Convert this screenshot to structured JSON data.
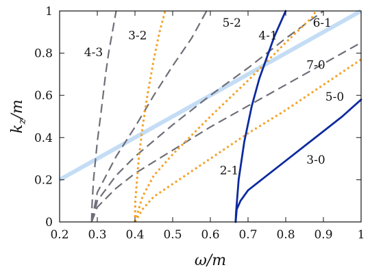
{
  "chart_data": {
    "type": "line",
    "xlabel": "ω/m",
    "ylabel": "k_z/m",
    "xlim": [
      0.2,
      1.0
    ],
    "ylim": [
      0,
      1
    ],
    "xticks": [
      "0.2",
      "0.3",
      "0.4",
      "0.5",
      "0.6",
      "0.7",
      "0.8",
      "0.9",
      "1"
    ],
    "yticks": [
      "0",
      "0.2",
      "0.4",
      "0.6",
      "0.8",
      "1"
    ],
    "grid": false,
    "colors": {
      "gray": "#6e6e78",
      "orange": "#f2a22a",
      "blue": "#0d2a9e",
      "lightblue": "#c4ddf5"
    },
    "series": [
      {
        "label": "4-3",
        "style": "gray-longdash",
        "points": [
          [
            0.285,
            0
          ],
          [
            0.286,
            0.08
          ],
          [
            0.29,
            0.2
          ],
          [
            0.3,
            0.38
          ],
          [
            0.31,
            0.52
          ],
          [
            0.322,
            0.7
          ],
          [
            0.33,
            0.8
          ],
          [
            0.34,
            0.9
          ],
          [
            0.35,
            1.0
          ]
        ]
      },
      {
        "label": "5-2",
        "style": "gray-longdash",
        "points": [
          [
            0.285,
            0
          ],
          [
            0.3,
            0.14
          ],
          [
            0.35,
            0.31
          ],
          [
            0.4,
            0.45
          ],
          [
            0.45,
            0.6
          ],
          [
            0.5,
            0.74
          ],
          [
            0.55,
            0.87
          ],
          [
            0.59,
            1.0
          ]
        ]
      },
      {
        "label": "6-1",
        "style": "gray-longdash",
        "points": [
          [
            0.285,
            0
          ],
          [
            0.3,
            0.1
          ],
          [
            0.35,
            0.22
          ],
          [
            0.4,
            0.31
          ],
          [
            0.5,
            0.46
          ],
          [
            0.6,
            0.6
          ],
          [
            0.7,
            0.73
          ],
          [
            0.8,
            0.87
          ],
          [
            0.9,
            1.0
          ]
        ]
      },
      {
        "label": "7-0",
        "style": "gray-longdash",
        "points": [
          [
            0.285,
            0
          ],
          [
            0.3,
            0.07
          ],
          [
            0.35,
            0.16
          ],
          [
            0.4,
            0.23
          ],
          [
            0.5,
            0.34
          ],
          [
            0.6,
            0.45
          ],
          [
            0.7,
            0.55
          ],
          [
            0.8,
            0.65
          ],
          [
            0.9,
            0.75
          ],
          [
            1.0,
            0.85
          ]
        ]
      },
      {
        "label": "3-2",
        "style": "orange-dot",
        "points": [
          [
            0.4,
            0
          ],
          [
            0.401,
            0.1
          ],
          [
            0.41,
            0.3
          ],
          [
            0.42,
            0.45
          ],
          [
            0.435,
            0.62
          ],
          [
            0.45,
            0.77
          ],
          [
            0.465,
            0.9
          ],
          [
            0.48,
            1.0
          ]
        ]
      },
      {
        "label": "4-1",
        "style": "orange-dot",
        "points": [
          [
            0.4,
            0
          ],
          [
            0.42,
            0.12
          ],
          [
            0.45,
            0.22
          ],
          [
            0.5,
            0.32
          ],
          [
            0.6,
            0.5
          ],
          [
            0.7,
            0.67
          ],
          [
            0.8,
            0.85
          ],
          [
            0.87,
            0.97
          ],
          [
            0.88,
            1.0
          ]
        ]
      },
      {
        "label": "5-0",
        "style": "orange-dot",
        "points": [
          [
            0.4,
            0
          ],
          [
            0.42,
            0.06
          ],
          [
            0.45,
            0.12
          ],
          [
            0.5,
            0.18
          ],
          [
            0.6,
            0.3
          ],
          [
            0.7,
            0.42
          ],
          [
            0.8,
            0.53
          ],
          [
            0.9,
            0.65
          ],
          [
            1.0,
            0.77
          ]
        ]
      },
      {
        "label": "2-1",
        "style": "blue-solid",
        "points": [
          [
            0.667,
            0
          ],
          [
            0.668,
            0.04
          ],
          [
            0.675,
            0.2
          ],
          [
            0.69,
            0.38
          ],
          [
            0.71,
            0.55
          ],
          [
            0.73,
            0.68
          ],
          [
            0.75,
            0.78
          ],
          [
            0.77,
            0.88
          ],
          [
            0.79,
            0.96
          ],
          [
            0.8,
            1.0
          ]
        ]
      },
      {
        "label": "3-0",
        "style": "blue-solid",
        "points": [
          [
            0.667,
            0
          ],
          [
            0.67,
            0.06
          ],
          [
            0.68,
            0.1
          ],
          [
            0.7,
            0.15
          ],
          [
            0.75,
            0.22
          ],
          [
            0.8,
            0.29
          ],
          [
            0.85,
            0.36
          ],
          [
            0.9,
            0.43
          ],
          [
            0.95,
            0.5
          ],
          [
            1.0,
            0.58
          ]
        ]
      },
      {
        "label": "",
        "style": "lightblue-thick",
        "points": [
          [
            0.2,
            0.2
          ],
          [
            1.0,
            1.0
          ]
        ]
      }
    ],
    "annotations": [
      {
        "text": "4-3",
        "x": 0.265,
        "y": 0.8
      },
      {
        "text": "3-2",
        "x": 0.382,
        "y": 0.88
      },
      {
        "text": "5-2",
        "x": 0.632,
        "y": 0.94
      },
      {
        "text": "4-1",
        "x": 0.728,
        "y": 0.88
      },
      {
        "text": "6-1",
        "x": 0.872,
        "y": 0.94
      },
      {
        "text": "7-0",
        "x": 0.855,
        "y": 0.74
      },
      {
        "text": "5-0",
        "x": 0.905,
        "y": 0.59
      },
      {
        "text": "2-1",
        "x": 0.625,
        "y": 0.24
      },
      {
        "text": "3-0",
        "x": 0.855,
        "y": 0.29
      }
    ]
  }
}
